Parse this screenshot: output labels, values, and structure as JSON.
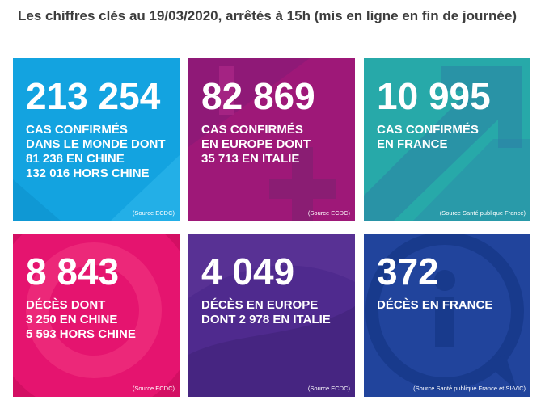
{
  "heading": "Les chiffres clés au 19/03/2020, arrêtés à 15h (mis en ligne en fin de journée)",
  "tiles": [
    {
      "number": "213 254",
      "text": "CAS CONFIRMÉS\nDANS LE MONDE DONT\n81 238 EN CHINE\n132 016 HORS CHINE",
      "source": "(Source ECDC)",
      "color": "#13a3e0"
    },
    {
      "number": "82 869",
      "text": "CAS CONFIRMÉS\nEN EUROPE DONT\n35 713 EN ITALIE",
      "source": "(Source ECDC)",
      "color": "#a4137d"
    },
    {
      "number": "10 995",
      "text": "CAS CONFIRMÉS\nEN FRANCE",
      "source": "(Source Santé publique France)",
      "color": "#27a9a9"
    },
    {
      "number": "8 843",
      "text": "DÉCÈS DONT\n3 250 EN CHINE\n5 593 HORS CHINE",
      "source": "(Source ECDC)",
      "color": "#e5146f"
    },
    {
      "number": "4 049",
      "text": "DÉCÈS EN EUROPE\nDONT 2 978 EN ITALIE",
      "source": "(Source ECDC)",
      "color": "#4f2a8e"
    },
    {
      "number": "372",
      "text": "DÉCÈS EN FRANCE",
      "source": "(Source Santé publique France et SI-VIC)",
      "color": "#21449c"
    }
  ]
}
